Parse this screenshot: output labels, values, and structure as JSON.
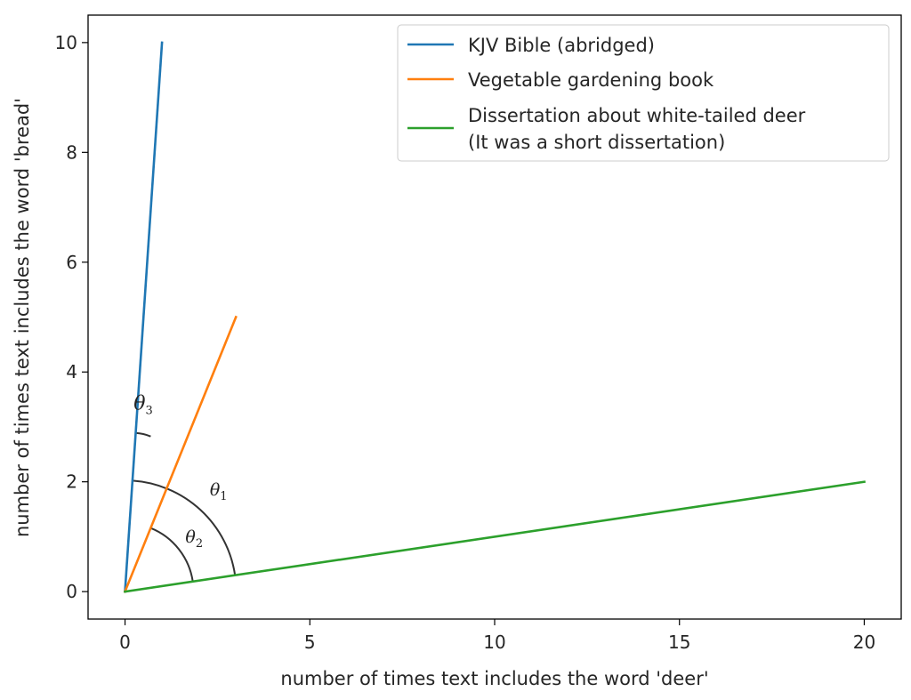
{
  "chart_data": {
    "type": "line",
    "xlabel": "number of times text includes the word 'deer'",
    "ylabel": "number of times text includes the word 'bread'",
    "xlim": [
      -1,
      21
    ],
    "ylim": [
      -0.5,
      10.5
    ],
    "xticks": [
      0,
      5,
      10,
      15,
      20
    ],
    "yticks": [
      0,
      2,
      4,
      6,
      8,
      10
    ],
    "grid": false,
    "legend_position": "top-right",
    "series": [
      {
        "name": "KJV Bible (abridged)",
        "color": "#1f77b4",
        "x": [
          0,
          1
        ],
        "y": [
          0,
          10
        ]
      },
      {
        "name": "Vegetable gardening book",
        "color": "#ff7f0e",
        "x": [
          0,
          3
        ],
        "y": [
          0,
          5
        ]
      },
      {
        "name": "Dissertation about white-tailed deer\n(It was a short dissertation)",
        "color": "#2ca02c",
        "x": [
          0,
          20
        ],
        "y": [
          0,
          2
        ]
      }
    ],
    "annotations": [
      {
        "label_base": "θ",
        "label_sub": "1",
        "between": [
          "Dissertation about white-tailed deer\n(It was a short dissertation)",
          "KJV Bible (abridged)"
        ]
      },
      {
        "label_base": "θ",
        "label_sub": "2",
        "between": [
          "Dissertation about white-tailed deer\n(It was a short dissertation)",
          "Vegetable gardening book"
        ]
      },
      {
        "label_base": "θ",
        "label_sub": "3",
        "between": [
          "Vegetable gardening book",
          "KJV Bible (abridged)"
        ]
      }
    ]
  }
}
